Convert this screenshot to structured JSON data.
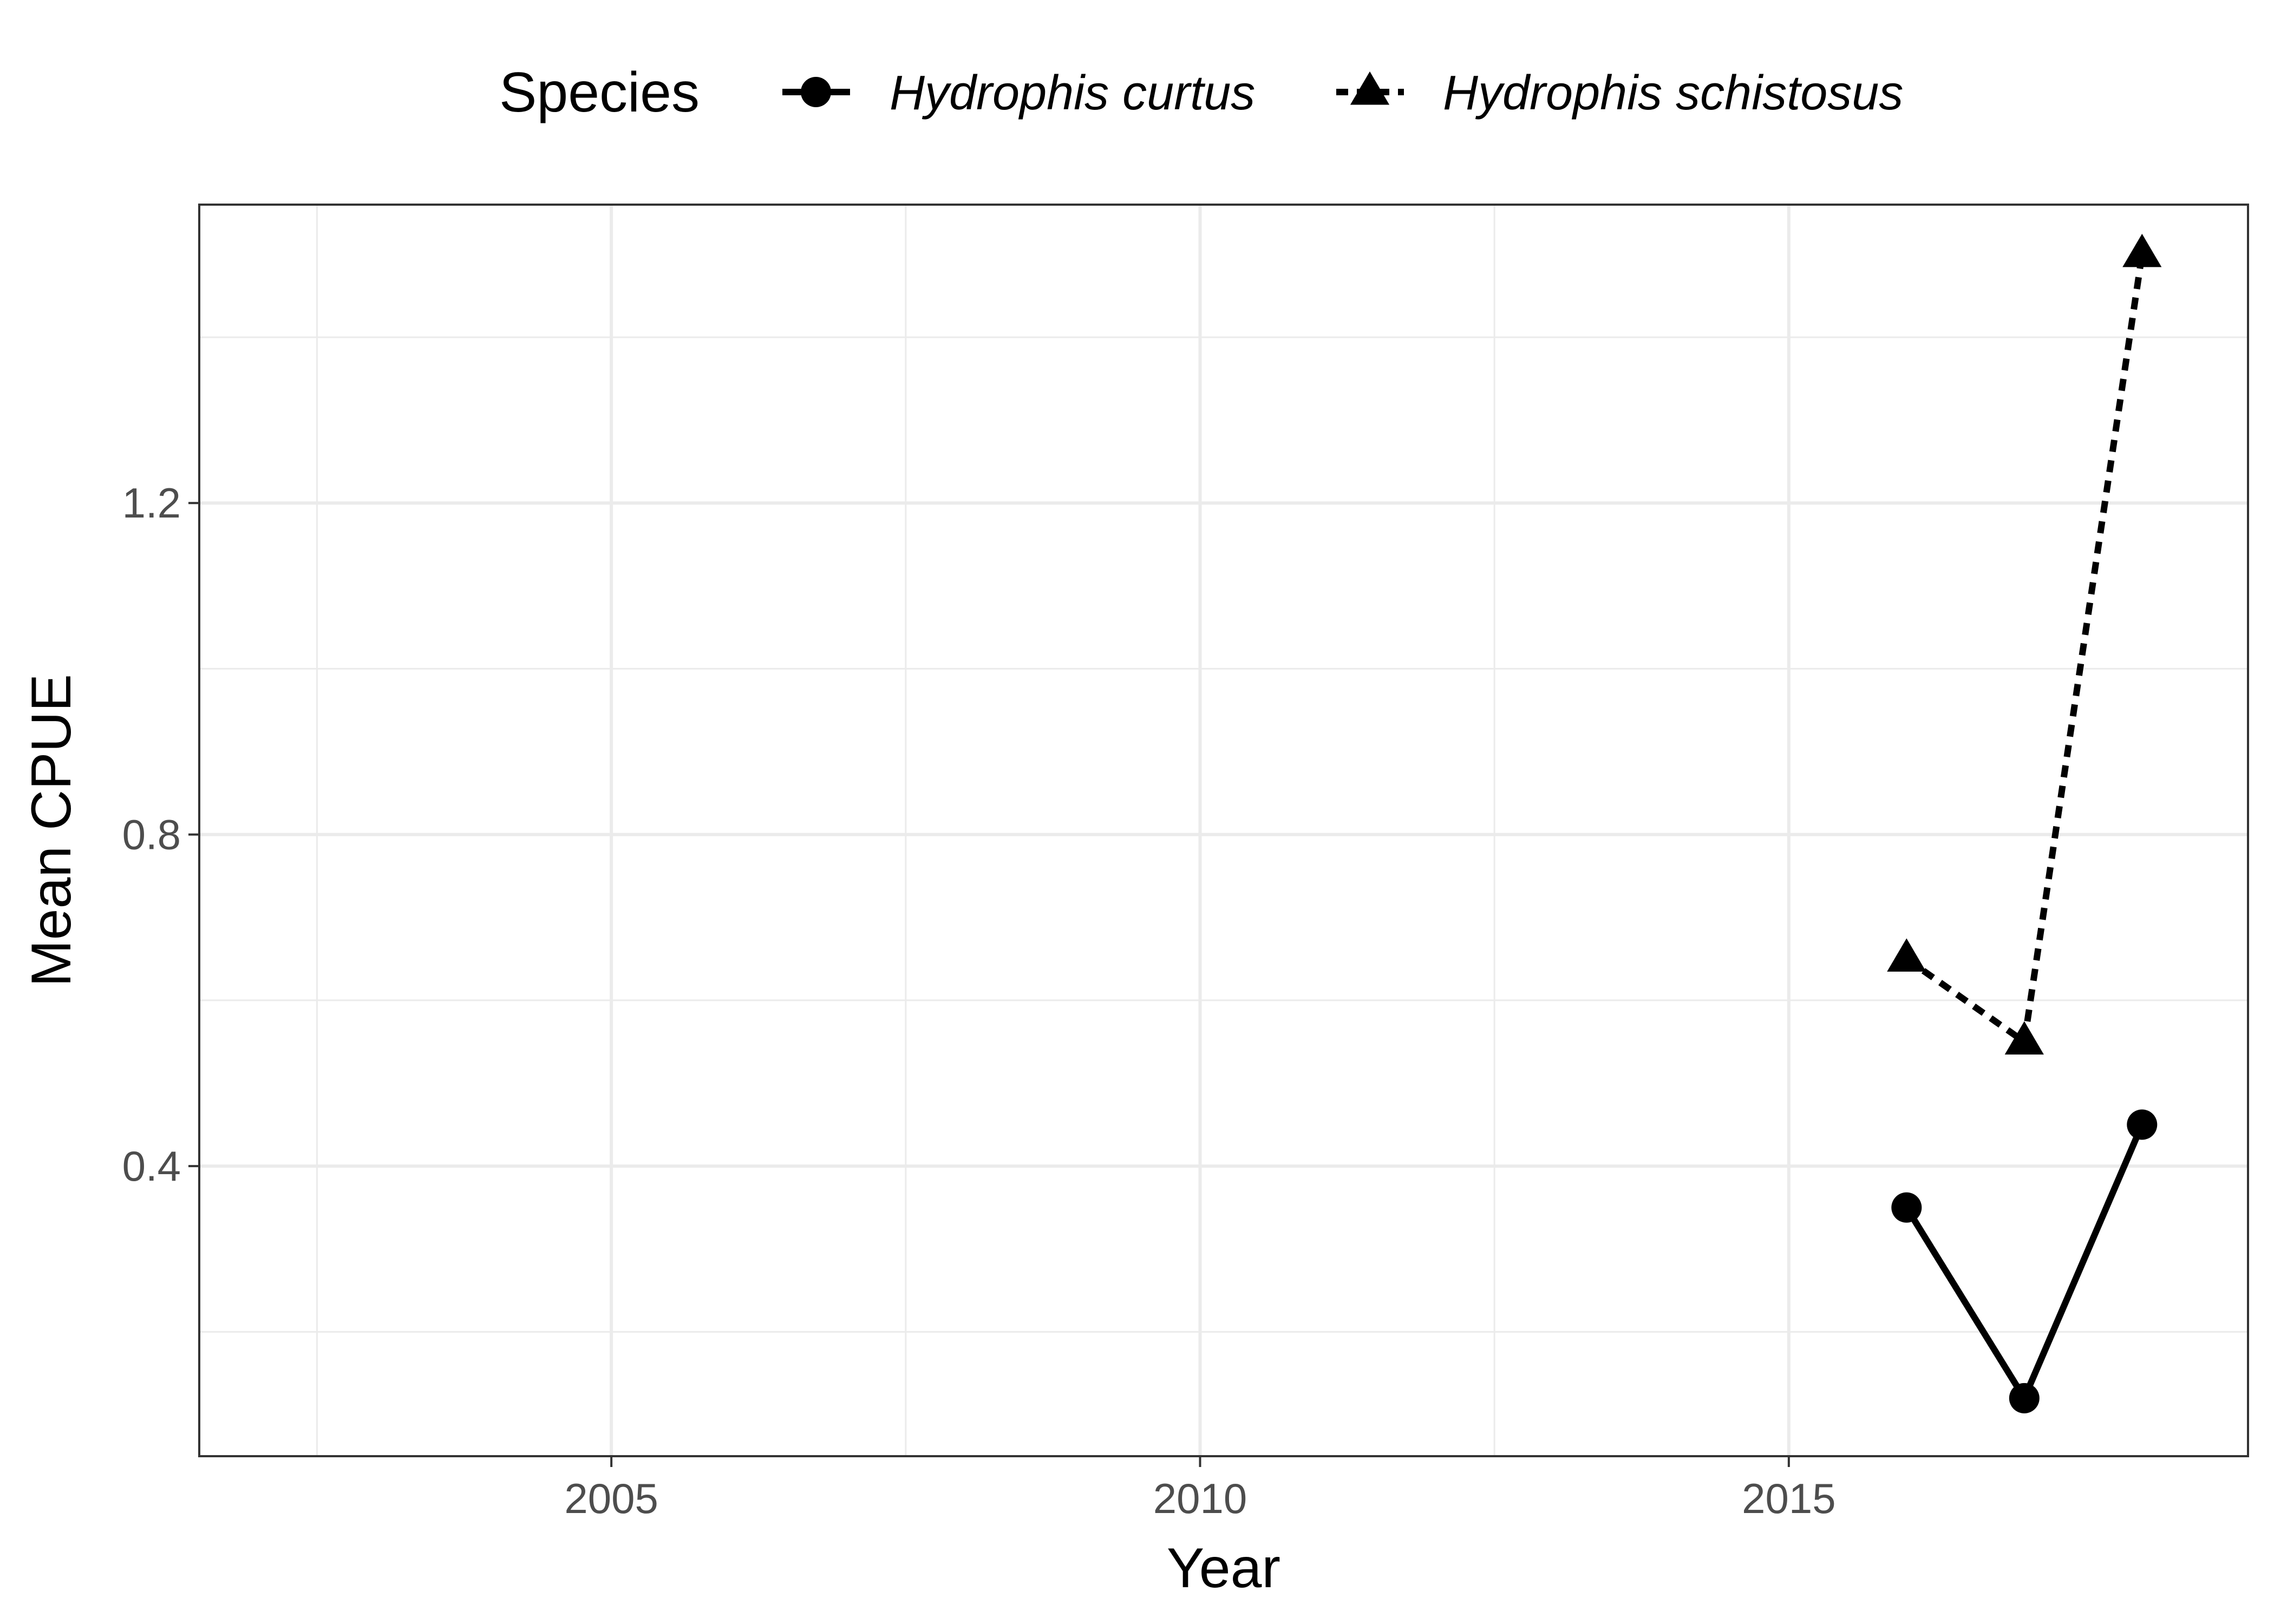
{
  "chart_data": {
    "type": "line",
    "xlabel": "Year",
    "ylabel": "Mean CPUE",
    "xlim": [
      2001.5,
      2018.9
    ],
    "ylim": [
      0.05,
      1.56
    ],
    "x_ticks": [
      2005,
      2010,
      2015
    ],
    "x_tick_labels": [
      "2005",
      "2010",
      "2015"
    ],
    "y_ticks": [
      0.4,
      0.8,
      1.2
    ],
    "y_tick_labels": [
      "0.4",
      "0.8",
      "1.2"
    ],
    "grid": true,
    "legend": {
      "title": "Species",
      "position": "top"
    },
    "series": [
      {
        "name": "Hydrophis curtus",
        "marker": "circle",
        "line_style": "solid",
        "color": "#000000",
        "x": [
          2016,
          2017,
          2018
        ],
        "y": [
          0.35,
          0.12,
          0.45
        ]
      },
      {
        "name": "Hydrophis schistosus",
        "marker": "triangle",
        "line_style": "dashed",
        "color": "#000000",
        "x": [
          2016,
          2017,
          2018
        ],
        "y": [
          0.65,
          0.55,
          1.5
        ]
      }
    ]
  }
}
